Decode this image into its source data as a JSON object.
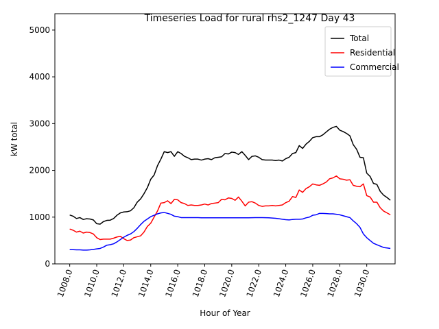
{
  "chart_data": {
    "type": "line",
    "title": "Timeseries Load for rural rhs2_1247  Day 43",
    "xlabel": "Hour of Year",
    "ylabel": "kW total",
    "xlim": [
      1006.9,
      1032.1
    ],
    "ylim": [
      0,
      5350
    ],
    "x_ticks": [
      1008,
      1010,
      1012,
      1014,
      1016,
      1018,
      1020,
      1022,
      1024,
      1026,
      1028,
      1030
    ],
    "x_tick_labels": [
      "1008.0",
      "1010.0",
      "1012.0",
      "1014.0",
      "1016.0",
      "1018.0",
      "1020.0",
      "1022.0",
      "1024.0",
      "1026.0",
      "1028.0",
      "1030.0"
    ],
    "y_ticks": [
      0,
      1000,
      2000,
      3000,
      4000,
      5000
    ],
    "y_tick_labels": [
      "0",
      "1000",
      "2000",
      "3000",
      "4000",
      "5000"
    ],
    "legend_position": "top-right",
    "series": [
      {
        "name": "Total",
        "color": "#000000",
        "x": [
          1008.0,
          1008.25,
          1008.5,
          1008.75,
          1009.0,
          1009.25,
          1009.5,
          1009.75,
          1010.0,
          1010.25,
          1010.5,
          1010.75,
          1011.0,
          1011.25,
          1011.5,
          1011.75,
          1012.0,
          1012.25,
          1012.5,
          1012.75,
          1013.0,
          1013.25,
          1013.5,
          1013.75,
          1014.0,
          1014.25,
          1014.5,
          1014.75,
          1015.0,
          1015.25,
          1015.5,
          1015.75,
          1016.0,
          1016.25,
          1016.5,
          1016.75,
          1017.0,
          1017.25,
          1017.5,
          1017.75,
          1018.0,
          1018.25,
          1018.5,
          1018.75,
          1019.0,
          1019.25,
          1019.5,
          1019.75,
          1020.0,
          1020.25,
          1020.5,
          1020.75,
          1021.0,
          1021.25,
          1021.5,
          1021.75,
          1022.0,
          1022.25,
          1022.5,
          1022.75,
          1023.0,
          1023.25,
          1023.5,
          1023.75,
          1024.0,
          1024.25,
          1024.5,
          1024.75,
          1025.0,
          1025.25,
          1025.5,
          1025.75,
          1026.0,
          1026.25,
          1026.5,
          1026.75,
          1027.0,
          1027.25,
          1027.5,
          1027.75,
          1028.0,
          1028.25,
          1028.5,
          1028.75,
          1029.0,
          1029.25,
          1029.5,
          1029.75,
          1030.0,
          1030.25,
          1030.5,
          1030.75,
          1031.0,
          1031.25,
          1031.5,
          1031.75
        ],
        "values": [
          1045,
          1020,
          970,
          990,
          950,
          965,
          960,
          940,
          860,
          850,
          905,
          930,
          935,
          970,
          1040,
          1090,
          1110,
          1115,
          1135,
          1200,
          1320,
          1390,
          1500,
          1630,
          1810,
          1900,
          2100,
          2240,
          2400,
          2380,
          2400,
          2300,
          2400,
          2360,
          2300,
          2270,
          2230,
          2240,
          2240,
          2220,
          2240,
          2250,
          2230,
          2270,
          2280,
          2290,
          2360,
          2350,
          2390,
          2380,
          2340,
          2400,
          2320,
          2230,
          2300,
          2310,
          2280,
          2230,
          2220,
          2220,
          2220,
          2210,
          2220,
          2200,
          2250,
          2280,
          2360,
          2380,
          2530,
          2470,
          2560,
          2620,
          2700,
          2720,
          2720,
          2760,
          2820,
          2880,
          2920,
          2940,
          2860,
          2830,
          2790,
          2740,
          2550,
          2450,
          2280,
          2270,
          1940,
          1870,
          1720,
          1700,
          1550,
          1470,
          1420,
          1360
        ]
      },
      {
        "name": "Residential",
        "color": "#ff0000",
        "x": [
          1008.0,
          1008.25,
          1008.5,
          1008.75,
          1009.0,
          1009.25,
          1009.5,
          1009.75,
          1010.0,
          1010.25,
          1010.5,
          1010.75,
          1011.0,
          1011.25,
          1011.5,
          1011.75,
          1012.0,
          1012.25,
          1012.5,
          1012.75,
          1013.0,
          1013.25,
          1013.5,
          1013.75,
          1014.0,
          1014.25,
          1014.5,
          1014.75,
          1015.0,
          1015.25,
          1015.5,
          1015.75,
          1016.0,
          1016.25,
          1016.5,
          1016.75,
          1017.0,
          1017.25,
          1017.5,
          1017.75,
          1018.0,
          1018.25,
          1018.5,
          1018.75,
          1019.0,
          1019.25,
          1019.5,
          1019.75,
          1020.0,
          1020.25,
          1020.5,
          1020.75,
          1021.0,
          1021.25,
          1021.5,
          1021.75,
          1022.0,
          1022.25,
          1022.5,
          1022.75,
          1023.0,
          1023.25,
          1023.5,
          1023.75,
          1024.0,
          1024.25,
          1024.5,
          1024.75,
          1025.0,
          1025.25,
          1025.5,
          1025.75,
          1026.0,
          1026.25,
          1026.5,
          1026.75,
          1027.0,
          1027.25,
          1027.5,
          1027.75,
          1028.0,
          1028.25,
          1028.5,
          1028.75,
          1029.0,
          1029.25,
          1029.5,
          1029.75,
          1030.0,
          1030.25,
          1030.5,
          1030.75,
          1031.0,
          1031.25,
          1031.5,
          1031.75
        ],
        "values": [
          745,
          720,
          680,
          700,
          660,
          680,
          670,
          640,
          560,
          520,
          530,
          530,
          530,
          550,
          575,
          590,
          540,
          500,
          510,
          560,
          580,
          600,
          680,
          800,
          870,
          1000,
          1130,
          1300,
          1310,
          1350,
          1290,
          1380,
          1370,
          1310,
          1290,
          1250,
          1260,
          1250,
          1250,
          1260,
          1280,
          1260,
          1290,
          1300,
          1310,
          1380,
          1370,
          1410,
          1400,
          1360,
          1430,
          1340,
          1240,
          1320,
          1330,
          1300,
          1250,
          1230,
          1240,
          1240,
          1250,
          1240,
          1250,
          1260,
          1310,
          1340,
          1440,
          1420,
          1580,
          1530,
          1610,
          1650,
          1710,
          1690,
          1680,
          1710,
          1750,
          1820,
          1840,
          1880,
          1820,
          1810,
          1790,
          1800,
          1680,
          1660,
          1650,
          1710,
          1460,
          1430,
          1320,
          1320,
          1200,
          1130,
          1090,
          1050
        ]
      },
      {
        "name": "Commercial",
        "color": "#0000ff",
        "x": [
          1008.0,
          1008.25,
          1008.5,
          1008.75,
          1009.0,
          1009.25,
          1009.5,
          1009.75,
          1010.0,
          1010.25,
          1010.5,
          1010.75,
          1011.0,
          1011.25,
          1011.5,
          1011.75,
          1012.0,
          1012.25,
          1012.5,
          1012.75,
          1013.0,
          1013.25,
          1013.5,
          1013.75,
          1014.0,
          1014.25,
          1014.5,
          1014.75,
          1015.0,
          1015.25,
          1015.5,
          1015.75,
          1016.0,
          1016.25,
          1016.5,
          1016.75,
          1017.0,
          1017.25,
          1017.5,
          1017.75,
          1018.0,
          1018.25,
          1018.5,
          1018.75,
          1019.0,
          1019.25,
          1019.5,
          1019.75,
          1020.0,
          1020.25,
          1020.5,
          1020.75,
          1021.0,
          1021.25,
          1021.5,
          1021.75,
          1022.0,
          1022.25,
          1022.5,
          1022.75,
          1023.0,
          1023.25,
          1023.5,
          1023.75,
          1024.0,
          1024.25,
          1024.5,
          1024.75,
          1025.0,
          1025.25,
          1025.5,
          1025.75,
          1026.0,
          1026.25,
          1026.5,
          1026.75,
          1027.0,
          1027.25,
          1027.5,
          1027.75,
          1028.0,
          1028.25,
          1028.5,
          1028.75,
          1029.0,
          1029.25,
          1029.5,
          1029.75,
          1030.0,
          1030.25,
          1030.5,
          1030.75,
          1031.0,
          1031.25,
          1031.5,
          1031.75
        ],
        "values": [
          305,
          305,
          300,
          300,
          295,
          295,
          300,
          310,
          320,
          330,
          360,
          400,
          410,
          430,
          470,
          520,
          570,
          610,
          640,
          690,
          760,
          840,
          910,
          960,
          1010,
          1040,
          1070,
          1090,
          1100,
          1080,
          1060,
          1020,
          1010,
          990,
          990,
          990,
          990,
          990,
          990,
          985,
          985,
          985,
          985,
          985,
          985,
          985,
          985,
          985,
          985,
          985,
          985,
          985,
          985,
          985,
          988,
          990,
          990,
          990,
          988,
          985,
          980,
          975,
          965,
          955,
          945,
          940,
          950,
          955,
          955,
          960,
          985,
          1000,
          1040,
          1050,
          1080,
          1080,
          1075,
          1070,
          1070,
          1060,
          1050,
          1030,
          1010,
          990,
          920,
          860,
          780,
          640,
          560,
          500,
          440,
          410,
          380,
          350,
          340,
          330
        ]
      }
    ]
  }
}
